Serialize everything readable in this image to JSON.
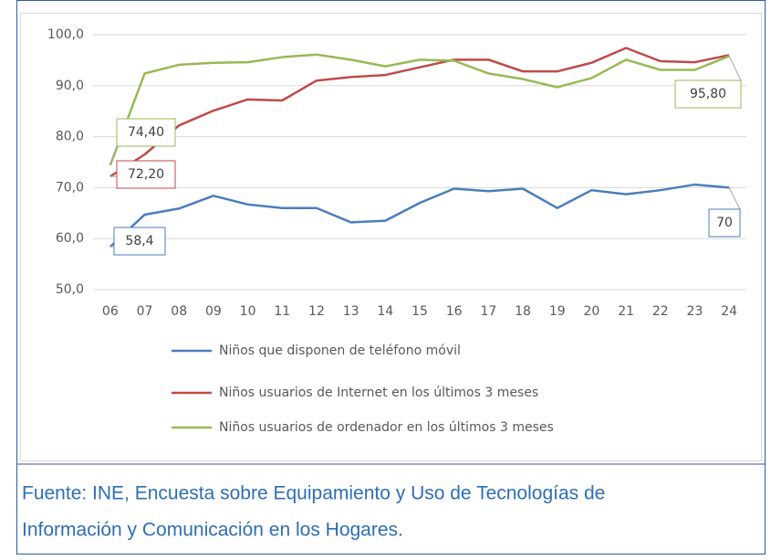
{
  "chart_data": {
    "type": "line",
    "categories": [
      "06",
      "07",
      "08",
      "09",
      "10",
      "11",
      "12",
      "13",
      "14",
      "15",
      "16",
      "17",
      "18",
      "19",
      "20",
      "21",
      "22",
      "23",
      "24"
    ],
    "series": [
      {
        "name": "Niños que disponen de teléfono móvil",
        "color": "#4a7ebb",
        "values": [
          58.4,
          64.7,
          65.9,
          68.4,
          66.7,
          66.0,
          66.0,
          63.2,
          63.5,
          67.0,
          69.8,
          69.3,
          69.8,
          66.0,
          69.5,
          68.7,
          69.5,
          70.6,
          70
        ],
        "value_labels": [
          "58,4",
          null,
          null,
          null,
          null,
          null,
          null,
          null,
          null,
          null,
          null,
          null,
          null,
          null,
          null,
          null,
          null,
          null,
          "70"
        ]
      },
      {
        "name": "Niños usuarios de Internet en los  últimos 3 meses",
        "color": "#be4b48",
        "values": [
          72.2,
          76.5,
          82.2,
          85.1,
          87.3,
          87.1,
          91.0,
          91.7,
          92.1,
          93.6,
          95.1,
          95.1,
          92.8,
          92.8,
          94.5,
          97.4,
          94.8,
          94.6,
          96.0
        ],
        "value_labels": [
          "72,20",
          null,
          null,
          null,
          null,
          null,
          null,
          null,
          null,
          null,
          null,
          null,
          null,
          null,
          null,
          null,
          null,
          null,
          null
        ]
      },
      {
        "name": "Niños usuarios de ordenador en los  últimos 3 meses",
        "color": "#98b954",
        "values": [
          74.4,
          92.4,
          94.1,
          94.5,
          94.6,
          95.6,
          96.1,
          95.1,
          93.8,
          95.1,
          94.9,
          92.4,
          91.3,
          89.7,
          91.5,
          95.1,
          93.1,
          93.1,
          95.8
        ],
        "value_labels": [
          "74,40",
          null,
          null,
          null,
          null,
          null,
          null,
          null,
          null,
          null,
          null,
          null,
          null,
          null,
          null,
          null,
          null,
          null,
          "95,80"
        ]
      }
    ],
    "ylim": [
      50,
      100
    ],
    "yticks": [
      {
        "value": 50,
        "label": "50,0"
      },
      {
        "value": 60,
        "label": "60,0"
      },
      {
        "value": 70,
        "label": "70,0"
      },
      {
        "value": 80,
        "label": "80,0"
      },
      {
        "value": 90,
        "label": "90,0"
      },
      {
        "value": 100,
        "label": "100,0"
      }
    ],
    "grid": true
  },
  "caption": [
    "Fuente: INE, Encuesta sobre Equipamiento y Uso de Tecnologías de",
    "Información y Comunicación en los Hogares."
  ]
}
